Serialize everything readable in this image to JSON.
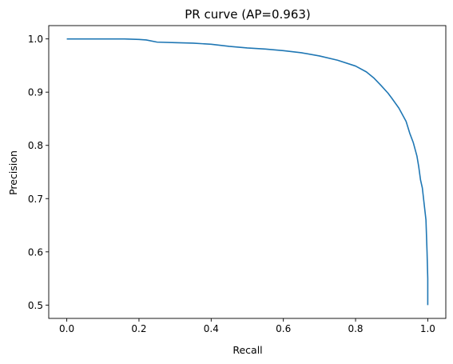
{
  "chart_data": {
    "type": "line",
    "title": "PR curve (AP=0.963)",
    "xlabel": "Recall",
    "ylabel": "Precision",
    "xlim": [
      -0.05,
      1.05
    ],
    "ylim": [
      0.475,
      1.025
    ],
    "xticks": [
      0.0,
      0.2,
      0.4,
      0.6,
      0.8,
      1.0
    ],
    "xtick_labels": [
      "0.0",
      "0.2",
      "0.4",
      "0.6",
      "0.8",
      "1.0"
    ],
    "yticks": [
      0.5,
      0.6,
      0.7,
      0.8,
      0.9,
      1.0
    ],
    "ytick_labels": [
      "0.5",
      "0.6",
      "0.7",
      "0.8",
      "0.9",
      "1.0"
    ],
    "grid": false,
    "series": [
      {
        "name": "PR curve",
        "color": "#1f77b4",
        "x": [
          0.0,
          0.05,
          0.1,
          0.16,
          0.2,
          0.22,
          0.25,
          0.3,
          0.35,
          0.4,
          0.45,
          0.5,
          0.55,
          0.6,
          0.65,
          0.7,
          0.75,
          0.8,
          0.83,
          0.85,
          0.87,
          0.89,
          0.9,
          0.92,
          0.94,
          0.95,
          0.96,
          0.97,
          0.975,
          0.98,
          0.985,
          0.99,
          0.995,
          0.998,
          1.0,
          1.0
        ],
        "y": [
          1.0,
          1.0,
          1.0,
          1.0,
          0.999,
          0.998,
          0.994,
          0.993,
          0.992,
          0.99,
          0.986,
          0.983,
          0.981,
          0.978,
          0.974,
          0.968,
          0.96,
          0.949,
          0.938,
          0.927,
          0.913,
          0.898,
          0.889,
          0.87,
          0.845,
          0.823,
          0.805,
          0.78,
          0.76,
          0.735,
          0.72,
          0.69,
          0.66,
          0.6,
          0.55,
          0.5
        ]
      }
    ]
  }
}
